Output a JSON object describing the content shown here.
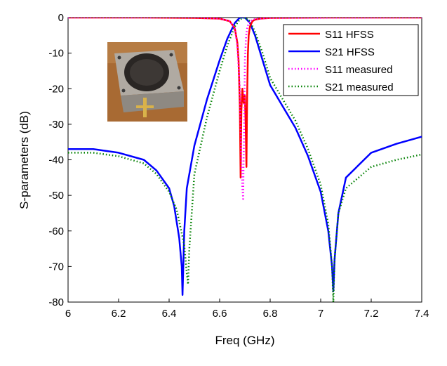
{
  "chart_data": {
    "type": "line",
    "title": "",
    "xlabel": "Freq (GHz)",
    "ylabel": "S-parameters (dB)",
    "xlim": [
      6,
      7.4
    ],
    "ylim": [
      -80,
      0
    ],
    "xticks": [
      "6",
      "6.2",
      "6.4",
      "6.6",
      "6.8",
      "7",
      "7.2",
      "7.4"
    ],
    "yticks": [
      "0",
      "-10",
      "-20",
      "-30",
      "-40",
      "-50",
      "-60",
      "-70",
      "-80"
    ],
    "grid": false,
    "legend_position": "top-right",
    "inset": "photo of cavity resonator",
    "series": [
      {
        "name": "S11 HFSS",
        "color": "#ff0000",
        "style": "solid",
        "x": [
          6.0,
          6.3,
          6.5,
          6.6,
          6.64,
          6.66,
          6.67,
          6.675,
          6.68,
          6.683,
          6.686,
          6.69,
          6.695,
          6.7,
          6.703,
          6.706,
          6.709,
          6.712,
          6.715,
          6.72,
          6.73,
          6.74,
          6.76,
          6.8,
          7.0,
          7.4
        ],
        "y": [
          0,
          0,
          -0.1,
          -0.3,
          -1,
          -3,
          -7,
          -12,
          -25,
          -45,
          -26,
          -20,
          -24,
          -22,
          -30,
          -42,
          -22,
          -10,
          -5,
          -2.5,
          -1,
          -0.6,
          -0.3,
          -0.1,
          0,
          0
        ]
      },
      {
        "name": "S21 HFSS",
        "color": "#0000ff",
        "style": "solid",
        "x": [
          6.0,
          6.1,
          6.2,
          6.3,
          6.35,
          6.4,
          6.42,
          6.44,
          6.45,
          6.453,
          6.46,
          6.47,
          6.5,
          6.55,
          6.6,
          6.63,
          6.66,
          6.68,
          6.7,
          6.72,
          6.74,
          6.77,
          6.8,
          6.85,
          6.9,
          6.95,
          7.0,
          7.03,
          7.045,
          7.05,
          7.055,
          7.07,
          7.1,
          7.2,
          7.3,
          7.4
        ],
        "y": [
          -37,
          -37,
          -38,
          -40,
          -43,
          -48,
          -53,
          -62,
          -70,
          -78,
          -60,
          -48,
          -36,
          -23,
          -12,
          -6,
          -1.5,
          0,
          0,
          -1.5,
          -5,
          -12,
          -19,
          -25,
          -31,
          -39,
          -49,
          -60,
          -70,
          -77,
          -68,
          -55,
          -45,
          -38,
          -35.5,
          -33.5
        ]
      },
      {
        "name": "S11 measured",
        "color": "#ff00ff",
        "style": "dotted",
        "x": [
          6.0,
          6.5,
          6.6,
          6.64,
          6.66,
          6.67,
          6.68,
          6.685,
          6.69,
          6.693,
          6.695,
          6.698,
          6.7,
          6.705,
          6.71,
          6.72,
          6.74,
          6.8,
          7.4
        ],
        "y": [
          0,
          0,
          -0.3,
          -1,
          -3,
          -8,
          -20,
          -38,
          -48,
          -51,
          -40,
          -25,
          -12,
          -5,
          -2.5,
          -1,
          -0.4,
          -0.1,
          0
        ]
      },
      {
        "name": "S21 measured",
        "color": "#008000",
        "style": "dotted",
        "x": [
          6.0,
          6.1,
          6.2,
          6.3,
          6.35,
          6.4,
          6.43,
          6.46,
          6.47,
          6.475,
          6.48,
          6.5,
          6.55,
          6.6,
          6.63,
          6.66,
          6.68,
          6.7,
          6.72,
          6.74,
          6.77,
          6.8,
          6.85,
          6.9,
          6.95,
          7.0,
          7.03,
          7.045,
          7.05,
          7.055,
          7.07,
          7.1,
          7.2,
          7.3,
          7.4
        ],
        "y": [
          -38,
          -38,
          -39,
          -41,
          -44,
          -49,
          -54,
          -64,
          -72,
          -75,
          -65,
          -44,
          -28,
          -15,
          -8,
          -2.5,
          -0.5,
          0,
          -1,
          -4,
          -10,
          -17,
          -23,
          -29,
          -37,
          -47,
          -58,
          -70,
          -80,
          -68,
          -55,
          -48,
          -42,
          -40,
          -38.5
        ]
      }
    ]
  }
}
